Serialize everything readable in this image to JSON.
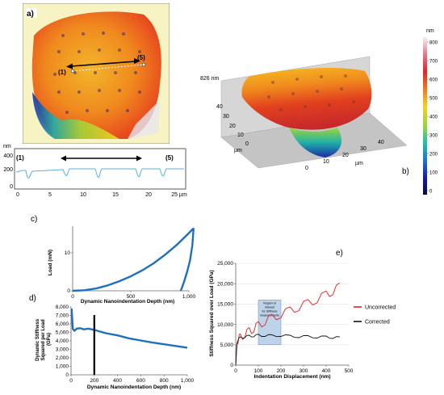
{
  "panel_a": {
    "tag": "a)",
    "marker_left": "(1)",
    "marker_right": "(5)",
    "profile_unit": "nm",
    "profile_marker_left": "(1)",
    "profile_marker_right": "(5)",
    "profile_y_ticks": [
      "400",
      "200",
      "0"
    ],
    "profile_x_ticks": [
      "0",
      "5",
      "10",
      "15",
      "20",
      "25 µm"
    ]
  },
  "panel_b": {
    "tag": "b)",
    "height_label": "826 nm",
    "colorbar_unit": "nm",
    "colorbar_ticks": [
      "800",
      "700",
      "600",
      "500",
      "400",
      "300",
      "200",
      "100",
      "0"
    ],
    "left_axis_ticks": [
      "40",
      "30",
      "20",
      "10",
      "0"
    ],
    "front_axis_ticks": [
      "0",
      "10",
      "20",
      "30",
      "40"
    ],
    "axis_unit": "µm",
    "colorbar_colors": [
      "#f7f0f2",
      "#e07a8a",
      "#e0262e",
      "#f07a1c",
      "#f5d21a",
      "#9fd43a",
      "#20c0b0",
      "#1f78c8",
      "#1a1ea8",
      "#0a0a3c"
    ]
  },
  "chart_data": [
    {
      "id": "c",
      "tag": "c)",
      "type": "line",
      "xlabel": "Dynamic Nanoindentation Depth (nm)",
      "ylabel": "Load (mN)",
      "x_ticks": [
        "0",
        "500",
        "1,000"
      ],
      "y_ticks": [
        "0",
        "10"
      ],
      "xlim": [
        0,
        1000
      ],
      "ylim": [
        0,
        17
      ],
      "series": [
        {
          "x": [
            0,
            100,
            200,
            300,
            400,
            500,
            600,
            700,
            800,
            900,
            1000,
            1040
          ],
          "y": [
            0,
            0.15,
            0.6,
            1.4,
            2.5,
            3.8,
            5.4,
            7.3,
            9.6,
            12.2,
            15.2,
            16.5
          ]
        },
        {
          "x": [
            1040,
            1030,
            1010,
            985,
            960,
            940,
            930
          ],
          "y": [
            16.5,
            12,
            8,
            5,
            2.5,
            0.8,
            0
          ]
        }
      ],
      "color": "#1f6fbf"
    },
    {
      "id": "d",
      "tag": "d)",
      "type": "line",
      "xlabel": "Dynamic Nanoindentation Depth (nm)",
      "ylabel": "Dynamic Stiffness Squared per Load (GPa)",
      "x_ticks": [
        "0",
        "200",
        "400",
        "600",
        "800",
        "1,000"
      ],
      "y_ticks": [
        "8,000",
        "7,000",
        "6,000",
        "5,000",
        "4,000",
        "3,000",
        "2,000",
        "1,000",
        "0"
      ],
      "xlim": [
        0,
        1000
      ],
      "ylim": [
        0,
        8000
      ],
      "vline_x": 200,
      "series": [
        {
          "x": [
            5,
            15,
            30,
            50,
            80,
            110,
            150,
            200,
            250,
            300,
            400,
            500,
            600,
            700,
            800,
            900,
            1000
          ],
          "y": [
            7800,
            5400,
            5200,
            5450,
            5500,
            5350,
            5450,
            5300,
            5100,
            4900,
            4650,
            4300,
            4050,
            3800,
            3600,
            3400,
            3200
          ]
        }
      ],
      "color": "#1f6fbf"
    },
    {
      "id": "e",
      "tag": "e)",
      "type": "line",
      "xlabel": "Indentation Displacement (nm)",
      "ylabel": "Stiffness Squared over Load (GPa)",
      "x_ticks": [
        "0",
        "100",
        "200",
        "300",
        "400",
        "500"
      ],
      "y_ticks": [
        "25,000",
        "20,000",
        "15,000",
        "10,000",
        "5,000",
        "0"
      ],
      "xlim": [
        0,
        500
      ],
      "ylim": [
        0,
        25000
      ],
      "region_x": [
        100,
        200
      ],
      "region_text": [
        "Region of",
        "Interest",
        "for Stiffness",
        "measurements"
      ],
      "series": [
        {
          "name": "Uncorrected",
          "color": "#e02020",
          "x": [
            0,
            5,
            10,
            20,
            40,
            60,
            80,
            100,
            130,
            160,
            200,
            240,
            280,
            320,
            360,
            400,
            430,
            460
          ],
          "y": [
            0,
            5000,
            6200,
            6800,
            7600,
            8300,
            9000,
            9800,
            10800,
            11600,
            12500,
            13400,
            14300,
            15200,
            16200,
            17300,
            18200,
            19300
          ]
        },
        {
          "name": "Corrected",
          "color": "#111111",
          "x": [
            0,
            5,
            10,
            20,
            40,
            60,
            80,
            100,
            130,
            160,
            200,
            240,
            280,
            320,
            360,
            400,
            430,
            460
          ],
          "y": [
            0,
            5000,
            6300,
            6700,
            7000,
            7100,
            7200,
            7300,
            7300,
            7200,
            7300,
            7100,
            7000,
            7000,
            6900,
            6900,
            6800,
            6700
          ]
        }
      ]
    }
  ]
}
